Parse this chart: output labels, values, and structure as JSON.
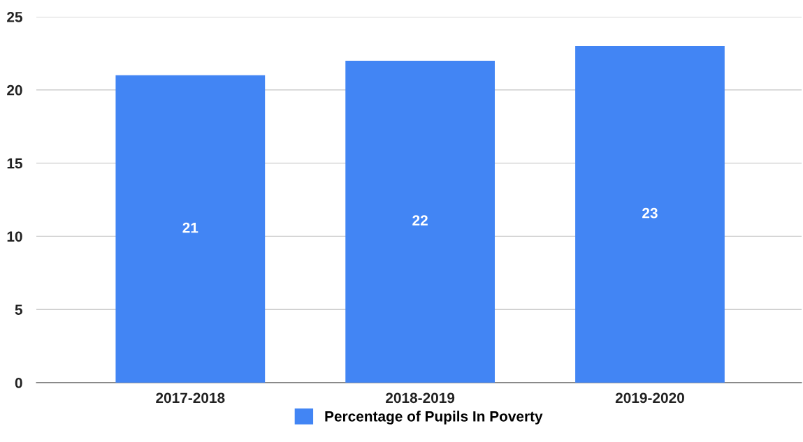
{
  "chart_data": {
    "type": "bar",
    "categories": [
      "2017-2018",
      "2018-2019",
      "2019-2020"
    ],
    "series": [
      {
        "name": "Percentage of Pupils In Poverty",
        "color": "#4285f4",
        "values": [
          21,
          22,
          23
        ]
      }
    ],
    "ylim": [
      0,
      25
    ],
    "yticks": [
      0,
      5,
      10,
      15,
      20,
      25
    ],
    "grid": "y",
    "legend": "bottom",
    "data_labels": true
  }
}
